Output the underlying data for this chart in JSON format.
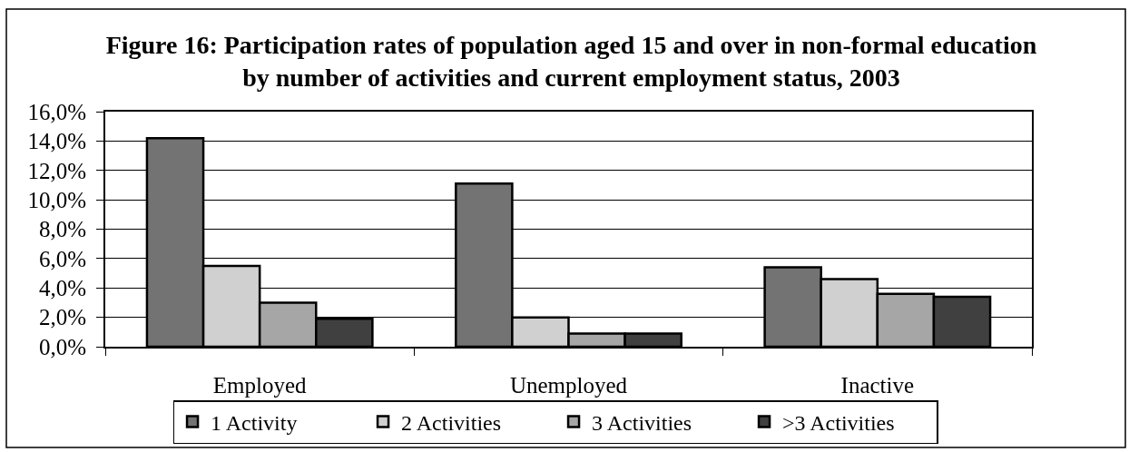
{
  "chart_data": {
    "type": "bar",
    "title": "Figure 16: Participation rates of population aged 15 and over in non-formal education\nby number of activities and current employment status, 2003",
    "categories": [
      "Employed",
      "Unemployed",
      "Inactive"
    ],
    "series": [
      {
        "name": "1 Activity",
        "color": "#737373",
        "values": [
          14.2,
          11.1,
          5.4
        ]
      },
      {
        "name": "2 Activities",
        "color": "#d0d0d0",
        "values": [
          5.5,
          2.0,
          4.6
        ]
      },
      {
        "name": "3 Activities",
        "color": "#a6a6a6",
        "values": [
          3.0,
          0.9,
          3.6
        ]
      },
      {
        "name": ">3 Activities",
        "color": "#404040",
        "values": [
          1.9,
          0.9,
          3.4
        ]
      }
    ],
    "ylim": [
      0,
      16
    ],
    "yticks": [
      {
        "value": 0,
        "label": "0,0%"
      },
      {
        "value": 2,
        "label": "2,0%"
      },
      {
        "value": 4,
        "label": "4,0%"
      },
      {
        "value": 6,
        "label": "6,0%"
      },
      {
        "value": 8,
        "label": "8,0%"
      },
      {
        "value": 10,
        "label": "10,0%"
      },
      {
        "value": 12,
        "label": "12,0%"
      },
      {
        "value": 14,
        "label": "14,0%"
      },
      {
        "value": 16,
        "label": "16,0%"
      }
    ],
    "grid": "y",
    "legend": "bottom"
  }
}
